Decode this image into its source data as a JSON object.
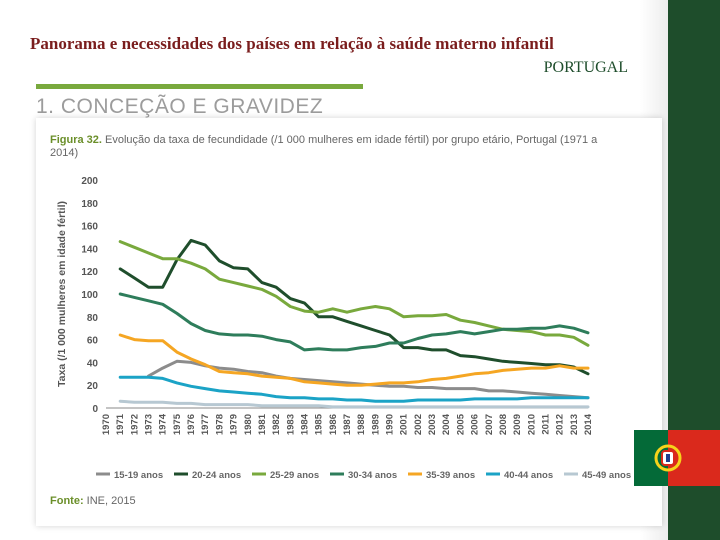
{
  "header": {
    "title": "Panorama e necessidades dos países em relação à saúde materno infantil",
    "subtitle": "PORTUGAL"
  },
  "section": {
    "title": "1. CONCEÇÃO E GRAVIDEZ"
  },
  "figure": {
    "number": "Figura 32.",
    "caption": "Evolução da taxa de fecundidade (/1 000 mulheres em idade fértil) por grupo etário, Portugal (1971 a 2014)",
    "source_label": "Fonte:",
    "source_text": "INE, 2015"
  },
  "colors": {
    "accent_green": "#79a93d",
    "dark_green": "#1e4d2b",
    "title_red": "#7a1d1d"
  },
  "chart_data": {
    "type": "line",
    "title": "Evolução da taxa de fecundidade (/1 000 mulheres em idade fértil) por grupo etário, Portugal (1971 a 2014)",
    "xlabel": "",
    "ylabel": "Taxa (/1 000 mulheres em idade fértil)",
    "ylim": [
      0,
      200
    ],
    "yticks": [
      0,
      20,
      40,
      60,
      80,
      100,
      120,
      140,
      160,
      180,
      200
    ],
    "grid": false,
    "legend_position": "bottom",
    "x": [
      "1970",
      "1971",
      "1972",
      "1973",
      "1974",
      "1975",
      "1976",
      "1977",
      "1978",
      "1979",
      "1980",
      "1981",
      "1982",
      "1983",
      "1984",
      "1985",
      "1986",
      "1987",
      "1988",
      "1989",
      "1990",
      "2001",
      "2002",
      "2003",
      "2004",
      "2005",
      "2006",
      "2007",
      "2008",
      "2009",
      "2010",
      "2011",
      "2012",
      "2013",
      "2014"
    ],
    "series": [
      {
        "name": "15-19 anos",
        "color": "#8c8c8c",
        "values": [
          null,
          null,
          null,
          28,
          35,
          41,
          40,
          37,
          35,
          34,
          32,
          31,
          28,
          26,
          25,
          24,
          23,
          22,
          21,
          20,
          19,
          19,
          18,
          18,
          17,
          17,
          17,
          15,
          15,
          14,
          13,
          12,
          11,
          10,
          9
        ]
      },
      {
        "name": "20-24 anos",
        "color": "#1f4e2c",
        "values": [
          null,
          122,
          114,
          106,
          106,
          130,
          147,
          143,
          129,
          123,
          122,
          110,
          106,
          96,
          92,
          80,
          80,
          76,
          72,
          68,
          64,
          53,
          53,
          51,
          51,
          46,
          45,
          43,
          41,
          40,
          39,
          38,
          38,
          36,
          30
        ]
      },
      {
        "name": "25-29 anos",
        "color": "#79a93d",
        "values": [
          null,
          146,
          141,
          136,
          131,
          131,
          127,
          122,
          113,
          110,
          107,
          104,
          98,
          89,
          85,
          84,
          87,
          84,
          87,
          89,
          87,
          80,
          81,
          81,
          82,
          77,
          75,
          72,
          69,
          68,
          67,
          64,
          64,
          62,
          55
        ]
      },
      {
        "name": "30-34 anos",
        "color": "#2e7d5b",
        "values": [
          null,
          100,
          97,
          94,
          91,
          83,
          74,
          68,
          65,
          64,
          64,
          63,
          60,
          58,
          51,
          52,
          51,
          51,
          53,
          54,
          57,
          57,
          61,
          64,
          65,
          67,
          65,
          67,
          69,
          69,
          70,
          70,
          72,
          70,
          66
        ]
      },
      {
        "name": "35-39 anos",
        "color": "#f5a623",
        "values": [
          null,
          64,
          60,
          59,
          59,
          49,
          43,
          38,
          32,
          31,
          30,
          28,
          27,
          26,
          23,
          22,
          21,
          20,
          20,
          21,
          22,
          22,
          23,
          25,
          26,
          28,
          30,
          31,
          33,
          34,
          35,
          35,
          37,
          35,
          35
        ]
      },
      {
        "name": "40-44 anos",
        "color": "#1ba3c6",
        "values": [
          null,
          27,
          27,
          27,
          26,
          22,
          19,
          17,
          15,
          14,
          13,
          12,
          10,
          9,
          9,
          8,
          8,
          7,
          7,
          6,
          6,
          6,
          7,
          7,
          7,
          7,
          8,
          8,
          8,
          8,
          9,
          9,
          9,
          9,
          9
        ]
      },
      {
        "name": "45-49 anos",
        "color": "#b7c8d2",
        "values": [
          null,
          6,
          5,
          5,
          5,
          4,
          4,
          3,
          3,
          3,
          3,
          2,
          2,
          2,
          2,
          2,
          1,
          1,
          1,
          1,
          1,
          1,
          1,
          1,
          1,
          1,
          1,
          1,
          1,
          1,
          1,
          1,
          1,
          1,
          1
        ]
      }
    ]
  }
}
